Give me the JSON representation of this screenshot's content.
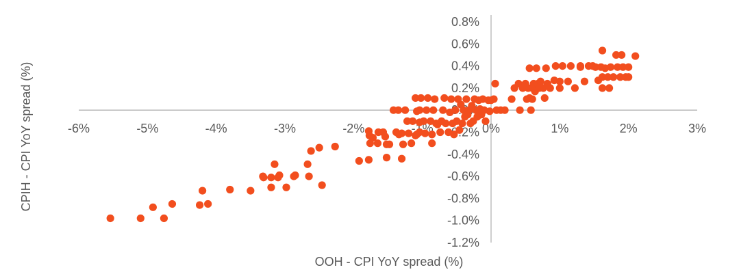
{
  "chart_data": {
    "type": "scatter",
    "title": "",
    "xlabel": "OOH - CPI YoY spread (%)",
    "ylabel": "CPIH - CPI YoY spread (%)",
    "xlim": [
      -6,
      3
    ],
    "ylim": [
      -1.2,
      0.8
    ],
    "x_ticks": [
      -6,
      -5,
      -4,
      -3,
      -2,
      -1,
      0,
      1,
      2,
      3
    ],
    "y_ticks": [
      0.8,
      0.6,
      0.4,
      0.2,
      0.0,
      -0.2,
      -0.4,
      -0.6,
      -0.8,
      -1.0,
      -1.2
    ],
    "x_tick_labels": [
      "-6%",
      "-5%",
      "-4%",
      "-3%",
      "-2%",
      "-1%",
      "0%",
      "1%",
      "2%",
      "3%"
    ],
    "y_tick_labels": [
      "0.8%",
      "0.6%",
      "0.4%",
      "0.2%",
      "0.0%",
      "-0.2%",
      "-0.4%",
      "-0.6%",
      "-0.8%",
      "-1.0%",
      "-1.2%"
    ],
    "marker_color": "#f24e1e",
    "axis_color": "#b3b3b3",
    "grid": false,
    "legend": "none",
    "points": [
      [
        -5.54,
        -0.98
      ],
      [
        -5.1,
        -0.98
      ],
      [
        -4.76,
        -0.98
      ],
      [
        -4.92,
        -0.88
      ],
      [
        -4.64,
        -0.85
      ],
      [
        -4.24,
        -0.86
      ],
      [
        -4.12,
        -0.85
      ],
      [
        -4.2,
        -0.73
      ],
      [
        -3.8,
        -0.72
      ],
      [
        -3.5,
        -0.73
      ],
      [
        -3.32,
        -0.6
      ],
      [
        -3.31,
        -0.61
      ],
      [
        -3.2,
        -0.61
      ],
      [
        -3.15,
        -0.49
      ],
      [
        -3.1,
        -0.61
      ],
      [
        -3.08,
        -0.59
      ],
      [
        -3.2,
        -0.7
      ],
      [
        -2.98,
        -0.7
      ],
      [
        -2.87,
        -0.6
      ],
      [
        -2.85,
        -0.59
      ],
      [
        -2.67,
        -0.49
      ],
      [
        -2.65,
        -0.6
      ],
      [
        -2.62,
        -0.37
      ],
      [
        -2.5,
        -0.34
      ],
      [
        -2.46,
        -0.68
      ],
      [
        -2.27,
        -0.33
      ],
      [
        -1.92,
        -0.46
      ],
      [
        -1.78,
        -0.45
      ],
      [
        -1.78,
        -0.19
      ],
      [
        -1.77,
        -0.23
      ],
      [
        -1.76,
        -0.3
      ],
      [
        -1.72,
        -0.25
      ],
      [
        -1.64,
        -0.2
      ],
      [
        -1.65,
        -0.3
      ],
      [
        -1.57,
        -0.2
      ],
      [
        -1.54,
        -0.24
      ],
      [
        -1.52,
        -0.31
      ],
      [
        -1.48,
        -0.31
      ],
      [
        -1.52,
        -0.43
      ],
      [
        -1.42,
        0.0
      ],
      [
        -1.38,
        -0.2
      ],
      [
        -1.34,
        -0.22
      ],
      [
        -1.3,
        -0.21
      ],
      [
        -1.28,
        -0.31
      ],
      [
        -1.3,
        -0.44
      ],
      [
        -1.35,
        0.0
      ],
      [
        -1.25,
        0.0
      ],
      [
        -1.22,
        -0.1
      ],
      [
        -1.2,
        -0.21
      ],
      [
        -1.16,
        -0.3
      ],
      [
        -1.14,
        -0.1
      ],
      [
        -1.1,
        -0.23
      ],
      [
        -1.08,
        -0.22
      ],
      [
        -1.04,
        -0.11
      ],
      [
        -1.08,
        -0.01
      ],
      [
        -1.1,
        0.11
      ],
      [
        -1.04,
        -0.2
      ],
      [
        -1.04,
        0.0
      ],
      [
        -1.02,
        0.11
      ],
      [
        -0.98,
        -0.1
      ],
      [
        -0.96,
        -0.21
      ],
      [
        -0.94,
        0.0
      ],
      [
        -0.92,
        0.11
      ],
      [
        -0.88,
        -0.1
      ],
      [
        -0.86,
        -0.22
      ],
      [
        -0.86,
        -0.3
      ],
      [
        -0.84,
        0.0
      ],
      [
        -0.82,
        0.1
      ],
      [
        -0.8,
        -0.12
      ],
      [
        -0.78,
        -0.13
      ],
      [
        -0.74,
        -0.2
      ],
      [
        -0.72,
        -0.1
      ],
      [
        -0.7,
        0.0
      ],
      [
        -0.68,
        0.11
      ],
      [
        -0.66,
        -0.12
      ],
      [
        -0.62,
        -0.2
      ],
      [
        -0.6,
        -0.02
      ],
      [
        -0.58,
        0.1
      ],
      [
        -0.56,
        -0.12
      ],
      [
        -0.54,
        -0.22
      ],
      [
        -0.52,
        0.0
      ],
      [
        -0.5,
        -0.1
      ],
      [
        -0.48,
        0.1
      ],
      [
        -0.46,
        -0.18
      ],
      [
        -0.44,
        0.05
      ],
      [
        -0.42,
        -0.12
      ],
      [
        -0.4,
        0.0
      ],
      [
        -0.38,
        -0.06
      ],
      [
        -0.36,
        0.1
      ],
      [
        -0.34,
        -0.04
      ],
      [
        -0.32,
        0.0
      ],
      [
        -0.3,
        -0.12
      ],
      [
        -0.28,
        0.04
      ],
      [
        -0.26,
        -0.1
      ],
      [
        -0.24,
        0.1
      ],
      [
        -0.22,
        0.0
      ],
      [
        -0.2,
        -0.06
      ],
      [
        -0.18,
        0.09
      ],
      [
        -0.16,
        0.01
      ],
      [
        -0.14,
        -0.04
      ],
      [
        -0.12,
        0.1
      ],
      [
        -0.1,
        0.0
      ],
      [
        -0.08,
        -0.1
      ],
      [
        -0.04,
        0.09
      ],
      [
        -0.02,
        -0.01
      ],
      [
        0.0,
        0.09
      ],
      [
        0.04,
        0.1
      ],
      [
        0.06,
        0.24
      ],
      [
        0.08,
        0.0
      ],
      [
        0.14,
        0.0
      ],
      [
        0.2,
        0.0
      ],
      [
        0.3,
        0.1
      ],
      [
        0.34,
        0.2
      ],
      [
        0.4,
        0.24
      ],
      [
        0.42,
        0.0
      ],
      [
        0.46,
        0.2
      ],
      [
        0.5,
        0.24
      ],
      [
        0.52,
        0.1
      ],
      [
        0.54,
        0.2
      ],
      [
        0.56,
        0.11
      ],
      [
        0.56,
        0.38
      ],
      [
        0.58,
        0.0
      ],
      [
        0.6,
        0.1
      ],
      [
        0.6,
        0.2
      ],
      [
        0.62,
        0.24
      ],
      [
        0.64,
        0.17
      ],
      [
        0.66,
        0.38
      ],
      [
        0.68,
        0.24
      ],
      [
        0.7,
        0.2
      ],
      [
        0.72,
        0.26
      ],
      [
        0.76,
        0.2
      ],
      [
        0.78,
        0.11
      ],
      [
        0.8,
        0.38
      ],
      [
        0.82,
        0.24
      ],
      [
        0.86,
        0.2
      ],
      [
        0.92,
        0.27
      ],
      [
        0.94,
        0.4
      ],
      [
        1.0,
        0.2
      ],
      [
        1.0,
        0.26
      ],
      [
        1.04,
        0.4
      ],
      [
        1.12,
        0.26
      ],
      [
        1.16,
        0.4
      ],
      [
        1.22,
        0.2
      ],
      [
        1.3,
        0.4
      ],
      [
        1.3,
        0.39
      ],
      [
        1.36,
        0.26
      ],
      [
        1.42,
        0.4
      ],
      [
        1.48,
        0.4
      ],
      [
        1.52,
        0.39
      ],
      [
        1.56,
        0.27
      ],
      [
        1.6,
        0.39
      ],
      [
        1.62,
        0.54
      ],
      [
        1.62,
        0.3
      ],
      [
        1.62,
        0.2
      ],
      [
        1.66,
        0.38
      ],
      [
        1.7,
        0.3
      ],
      [
        1.72,
        0.2
      ],
      [
        1.74,
        0.39
      ],
      [
        1.78,
        0.3
      ],
      [
        1.82,
        0.5
      ],
      [
        1.84,
        0.39
      ],
      [
        1.88,
        0.3
      ],
      [
        1.9,
        0.5
      ],
      [
        1.92,
        0.39
      ],
      [
        1.96,
        0.3
      ],
      [
        2.0,
        0.39
      ],
      [
        2.0,
        0.3
      ],
      [
        2.1,
        0.49
      ]
    ]
  }
}
